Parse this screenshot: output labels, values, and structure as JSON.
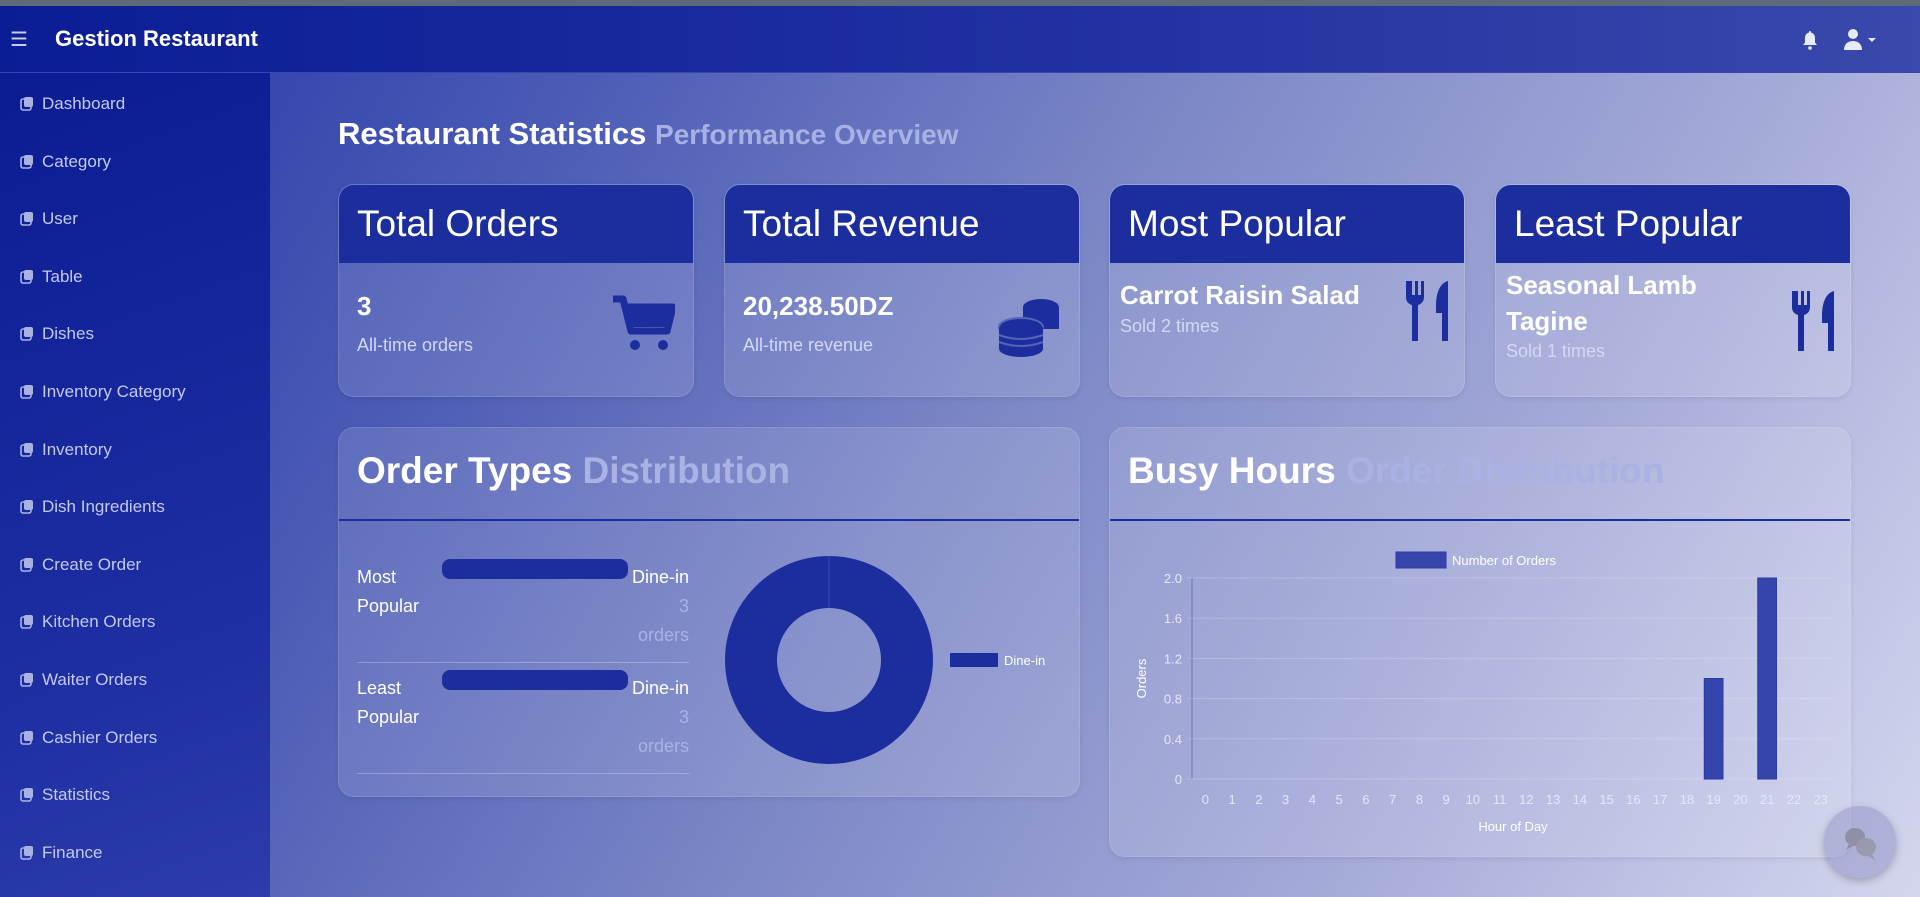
{
  "app": {
    "title": "Gestion Restaurant",
    "menu_icon": "hamburger-icon",
    "bell_icon": "bell-icon",
    "user_icon": "user-icon"
  },
  "sidebar": {
    "items": [
      {
        "label": "Dashboard",
        "icon": "dashboard-icon"
      },
      {
        "label": "Category",
        "icon": "building-icon"
      },
      {
        "label": "User",
        "icon": "user-tie-icon"
      },
      {
        "label": "Table",
        "icon": "clone-plus-icon"
      },
      {
        "label": "Dishes",
        "icon": "clone-plus-icon"
      },
      {
        "label": "Inventory Category",
        "icon": "clone-plus-icon"
      },
      {
        "label": "Inventory",
        "icon": "clone-plus-icon"
      },
      {
        "label": "Dish Ingredients",
        "icon": "clone-plus-icon"
      },
      {
        "label": "Create Order",
        "icon": "clone-plus-icon"
      },
      {
        "label": "Kitchen Orders",
        "icon": "clone-plus-icon"
      },
      {
        "label": "Waiter Orders",
        "icon": "clone-plus-icon"
      },
      {
        "label": "Cashier Orders",
        "icon": "clone-plus-icon"
      },
      {
        "label": "Statistics",
        "icon": "clone-plus-icon"
      },
      {
        "label": "Finance",
        "icon": "clone-plus-icon"
      }
    ]
  },
  "page": {
    "title": "Restaurant Statistics",
    "subtitle": "Performance Overview"
  },
  "stats": [
    {
      "header": "Total Orders",
      "value": "3",
      "label": "All-time orders",
      "icon": "cart-icon"
    },
    {
      "header": "Total Revenue",
      "value": "20,238.50DZ",
      "label": "All-time revenue",
      "icon": "coins-icon"
    },
    {
      "header": "Most Popular",
      "value": "Carrot Raisin Salad",
      "label": "Sold 2 times",
      "icon": "utensils-icon"
    },
    {
      "header": "Least Popular",
      "value": "Seasonal Lamb Tagine",
      "label": "Sold 1 times",
      "icon": "utensils-icon"
    }
  ],
  "order_types": {
    "title": "Order Types",
    "subtitle": "Distribution",
    "rows": [
      {
        "label": "Most Popular",
        "type": "Dine-in",
        "count": "3",
        "unit": "orders"
      },
      {
        "label": "Least Popular",
        "type": "Dine-in",
        "count": "3",
        "unit": "orders"
      }
    ]
  },
  "busy_hours": {
    "title": "Busy Hours",
    "subtitle": "Order Distribution"
  },
  "colors": {
    "accent": "#1c2d9e",
    "bar": "#3545ab"
  },
  "chart_data": [
    {
      "type": "pie",
      "variant": "doughnut",
      "categories": [
        "Dine-in"
      ],
      "values": [
        3
      ],
      "legend": "right"
    },
    {
      "type": "bar",
      "legend_label": "Number of Orders",
      "xlabel": "Hour of Day",
      "ylabel": "Orders",
      "categories": [
        "0",
        "1",
        "2",
        "3",
        "4",
        "5",
        "6",
        "7",
        "8",
        "9",
        "10",
        "11",
        "12",
        "13",
        "14",
        "15",
        "16",
        "17",
        "18",
        "19",
        "20",
        "21",
        "22",
        "23"
      ],
      "values": [
        0,
        0,
        0,
        0,
        0,
        0,
        0,
        0,
        0,
        0,
        0,
        0,
        0,
        0,
        0,
        0,
        0,
        0,
        0,
        1,
        0,
        2,
        0,
        0
      ],
      "ylim": [
        0,
        2.0
      ],
      "yticks": [
        "0",
        "0.4",
        "0.8",
        "1.2",
        "1.6",
        "2.0"
      ],
      "grid": true,
      "legend": "top"
    }
  ],
  "chat": {
    "icon": "chat-bubbles-icon"
  }
}
